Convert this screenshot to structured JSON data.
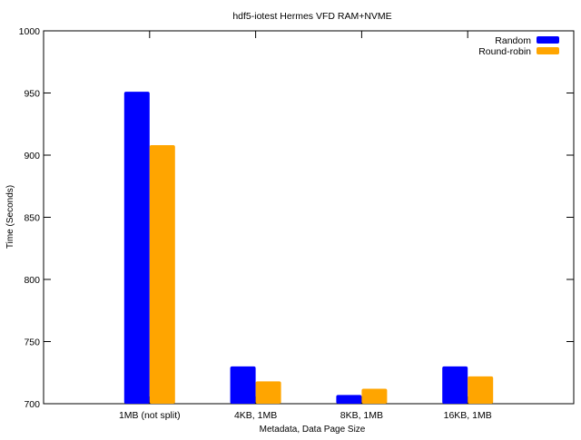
{
  "chart_data": {
    "type": "bar",
    "title": "hdf5-iotest Hermes VFD RAM+NVME",
    "xlabel": "Metadata, Data Page Size",
    "ylabel": "Time (Seconds)",
    "categories": [
      "1MB (not split)",
      "4KB, 1MB",
      "8KB, 1MB",
      "16KB, 1MB"
    ],
    "series": [
      {
        "name": "Random",
        "color": "#0000ff",
        "values": [
          951,
          730,
          707,
          730
        ]
      },
      {
        "name": "Round-robin",
        "color": "#ffa500",
        "values": [
          908,
          718,
          712,
          722
        ]
      }
    ],
    "ylim": [
      700,
      1000
    ],
    "yticks": [
      700,
      750,
      800,
      850,
      900,
      950,
      1000
    ],
    "legend_position": "top-right",
    "grid": false
  }
}
